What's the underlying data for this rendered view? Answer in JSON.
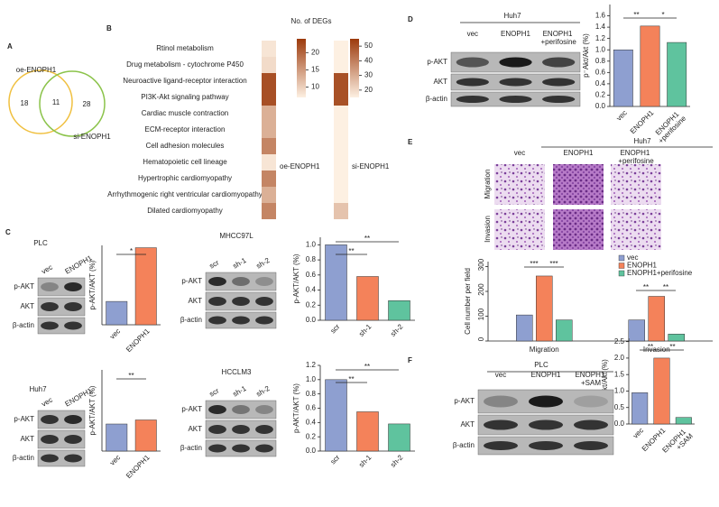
{
  "figure": {
    "panel_labels": [
      "A",
      "B",
      "C",
      "D",
      "E",
      "F"
    ],
    "venn": {
      "sets": [
        "oe-ENOPH1",
        "si-ENOPH1"
      ],
      "counts": [
        18,
        11,
        28
      ]
    },
    "blots": [
      {
        "title": "PLC",
        "lanes": [
          "vec",
          "ENOPH1"
        ],
        "rows": [
          "p-AKT",
          "AKT",
          "β-actin"
        ]
      },
      {
        "title": "MHCC97L",
        "lanes": [
          "scr",
          "sh-1",
          "sh-2"
        ],
        "rows": [
          "p-AKT",
          "AKT",
          "β-actin"
        ]
      },
      {
        "title": "Huh7",
        "lanes": [
          "vec",
          "ENOPH1"
        ],
        "rows": [
          "p-AKT",
          "AKT",
          "β-actin"
        ]
      },
      {
        "title": "HCCLM3",
        "lanes": [
          "scr",
          "sh-1",
          "sh-2"
        ],
        "rows": [
          "p-AKT",
          "AKT",
          "β-actin"
        ]
      },
      {
        "title": "Huh7",
        "lanes": [
          "vec",
          "ENOPH1",
          "ENOPH1 +perifosine"
        ],
        "rows": [
          "p-AKT",
          "AKT",
          "β-actin"
        ]
      },
      {
        "title": "PLC",
        "lanes": [
          "vec",
          "ENOPH1",
          "ENOPH1 +SAM"
        ],
        "rows": [
          "p-AKT",
          "AKT",
          "β-actin"
        ]
      }
    ],
    "micrographs": {
      "title": "Huh7",
      "columns": [
        "vec",
        "ENOPH1",
        "ENOPH1 +perifosine"
      ],
      "rows": [
        "Migration",
        "Invasion"
      ]
    }
  },
  "chart_data": [
    {
      "type": "heatmap",
      "title": "No. of DEGs",
      "categories": [
        "Rtinol metabolism",
        "Drug metabolism - cytochrome P450",
        "Neuroactive ligand-receptor interaction",
        "PI3K-Akt signaling pathway",
        "Cardiac muscle contraction",
        "ECM-receptor interaction",
        "Cell adhesion molecules",
        "Hematopoietic cell lineage",
        "Hypertrophic cardiomyopathy",
        "Arrhythmogenic right ventricular cardiomyopathy",
        "Dilated cardiomyopathy"
      ],
      "series": [
        {
          "name": "oe-ENOPH1",
          "values": [
            8,
            9,
            22,
            22,
            13,
            13,
            17,
            8,
            17,
            13,
            17
          ],
          "clim": [
            7,
            24
          ],
          "cticks": [
            10,
            15,
            20
          ]
        },
        {
          "name": "si-ENOPH1",
          "values": [
            15,
            15,
            50,
            50,
            15,
            15,
            15,
            15,
            15,
            15,
            25
          ],
          "clim": [
            15,
            55
          ],
          "cticks": [
            20,
            30,
            40,
            50
          ]
        }
      ]
    },
    {
      "type": "bar",
      "y_label": "p-AKT/AKT (%)",
      "categories": [
        "vec",
        "ENOPH1"
      ],
      "values": [
        1.0,
        2.15
      ],
      "colors": [
        "#8e9fd0",
        "#f4825a"
      ],
      "ylim": [
        0.5,
        2.2
      ],
      "annotations": [
        "*"
      ]
    },
    {
      "type": "bar",
      "y_label": "p-AKT/AKT (%)",
      "categories": [
        "scr",
        "sh-1",
        "sh-2"
      ],
      "values": [
        1.0,
        0.58,
        0.26
      ],
      "colors": [
        "#8e9fd0",
        "#f4825a",
        "#5fc39e"
      ],
      "ylim": [
        0,
        1.1
      ],
      "yticks": [
        {
          "value": 0,
          "label": "0.0"
        },
        0.2,
        0.4,
        0.6,
        0.8,
        {
          "value": 1,
          "label": "1.0"
        }
      ],
      "annotations": [
        "**",
        "**"
      ]
    },
    {
      "type": "bar",
      "y_label": "p-AKT/AKT (%)",
      "categories": [
        "vec",
        "ENOPH1"
      ],
      "values": [
        1.0,
        1.15
      ],
      "colors": [
        "#8e9fd0",
        "#f4825a"
      ],
      "ylim": [
        0,
        3
      ],
      "annotations": [
        "**"
      ]
    },
    {
      "type": "bar",
      "y_label": "p-AKT/AKT (%)",
      "categories": [
        "scr",
        "sh-1",
        "sh-2"
      ],
      "values": [
        1.0,
        0.55,
        0.38
      ],
      "colors": [
        "#8e9fd0",
        "#f4825a",
        "#5fc39e"
      ],
      "ylim": [
        0,
        1.2
      ],
      "yticks": [
        {
          "value": 0,
          "label": "0.0"
        },
        0.2,
        0.4,
        0.6,
        0.8,
        {
          "value": 1,
          "label": "1.0"
        },
        1.2
      ],
      "annotations": [
        "**",
        "**"
      ]
    },
    {
      "type": "bar",
      "y_label": "p⁻Akt/Akt (%)",
      "categories": [
        "vec",
        "ENOPH1",
        "ENOPH1 +perifosine"
      ],
      "values": [
        1.0,
        1.42,
        1.13
      ],
      "colors": [
        "#8e9fd0",
        "#f4825a",
        "#5fc39e"
      ],
      "ylim": [
        0,
        1.8
      ],
      "yticks": [
        {
          "value": 0,
          "label": "0.0"
        },
        0.2,
        0.4,
        0.6,
        0.8,
        {
          "value": 1,
          "label": "1.0"
        },
        1.2,
        1.4,
        1.6
      ],
      "annotations": [
        "**",
        "*"
      ]
    },
    {
      "type": "grouped_bar",
      "y_label": "Cell number per field",
      "categories": [
        "Migration",
        "Invasion"
      ],
      "series": [
        {
          "name": "vec",
          "color": "#8e9fd0",
          "values": [
            105,
            85
          ]
        },
        {
          "name": "ENOPH1",
          "color": "#f4825a",
          "values": [
            262,
            180
          ]
        },
        {
          "name": "ENOPH1+perifosine",
          "color": "#5fc39e",
          "values": [
            85,
            28
          ]
        }
      ],
      "ylim": [
        0,
        320
      ],
      "yticks": [
        0,
        100,
        200,
        300
      ],
      "legend": "upper right",
      "annotations": [
        "***",
        "***",
        "**",
        "**"
      ]
    },
    {
      "type": "bar",
      "y_label": "p⁻Akt/Akt (%)",
      "categories": [
        "vec",
        "ENOPH1",
        "ENOPH1 +SAM"
      ],
      "values": [
        0.95,
        2.0,
        0.2
      ],
      "colors": [
        "#8e9fd0",
        "#f4825a",
        "#5fc39e"
      ],
      "ylim": [
        0,
        2.6
      ],
      "yticks": [
        {
          "value": 0,
          "label": "0.0"
        },
        0.5,
        {
          "value": 1,
          "label": "1.0"
        },
        1.5,
        {
          "value": 2,
          "label": "2.0"
        },
        2.5
      ],
      "annotations": [
        "**",
        "**"
      ]
    }
  ]
}
